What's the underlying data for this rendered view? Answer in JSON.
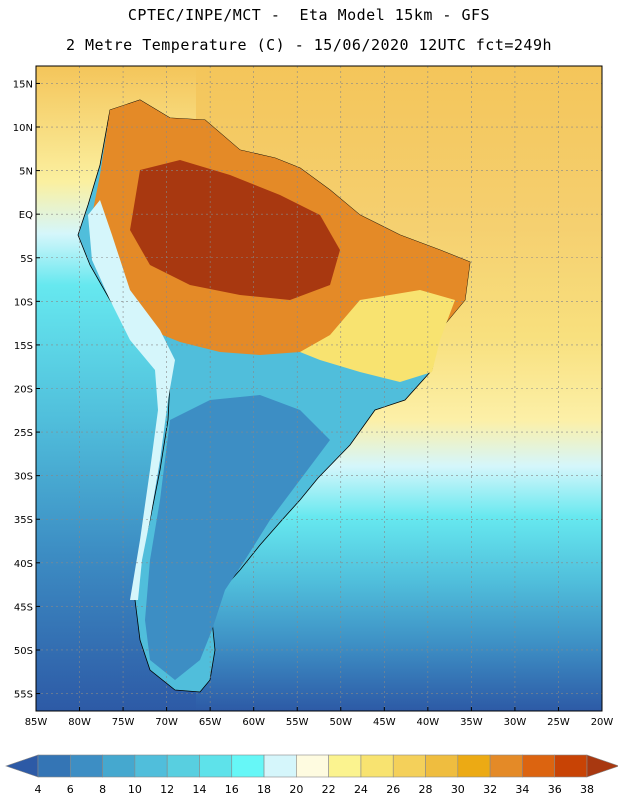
{
  "header": {
    "line1": "CPTEC/INPE/MCT -  Eta Model 15km - GFS",
    "line2": "2 Metre Temperature (C) - 15/06/2020 12UTC fct=249h"
  },
  "map": {
    "lat_labels": [
      "15N",
      "10N",
      "5N",
      "EQ",
      "5S",
      "10S",
      "15S",
      "20S",
      "25S",
      "30S",
      "35S",
      "40S",
      "45S",
      "50S",
      "55S"
    ],
    "lon_labels": [
      "85W",
      "80W",
      "75W",
      "70W",
      "65W",
      "60W",
      "55W",
      "50W",
      "45W",
      "40W",
      "35W",
      "30W",
      "25W",
      "20W"
    ],
    "lat_range": [
      -57,
      17
    ],
    "lon_range": [
      -85,
      -20
    ]
  },
  "colorbar": {
    "labels": [
      "4",
      "6",
      "8",
      "10",
      "12",
      "14",
      "16",
      "18",
      "20",
      "22",
      "24",
      "26",
      "28",
      "30",
      "32",
      "34",
      "36",
      "38"
    ],
    "colors": [
      "#2d5aa6",
      "#3475b5",
      "#3d8ec4",
      "#45a8cf",
      "#50bedb",
      "#58cfe0",
      "#5ee2ea",
      "#66f7f7",
      "#d5f6fb",
      "#fefbe0",
      "#fbf38f",
      "#f8e370",
      "#f4d05a",
      "#efbd3f",
      "#ecaa14",
      "#e48a27",
      "#dc6410",
      "#c84305",
      "#a83810"
    ]
  }
}
